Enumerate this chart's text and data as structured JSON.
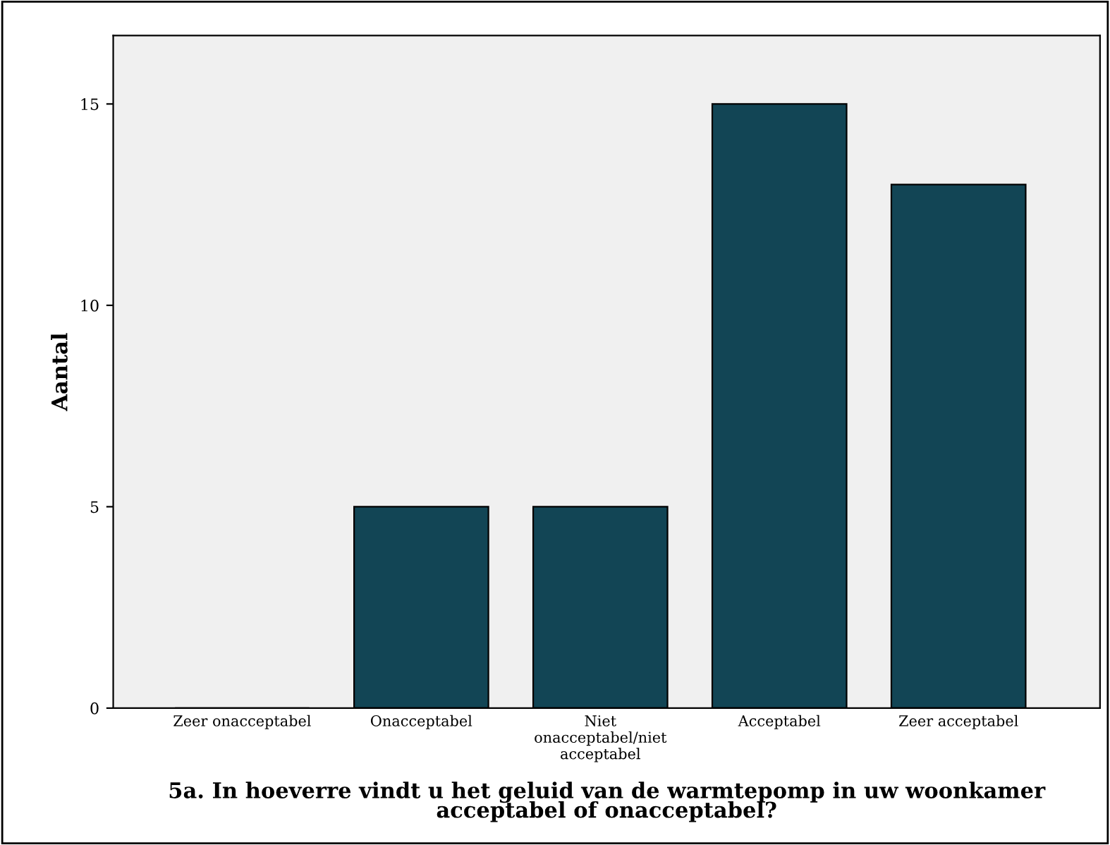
{
  "chart_data": {
    "type": "bar",
    "categories": [
      "Zeer onacceptabel",
      "Onacceptabel",
      "Niet\nonacceptabel/niet\nacceptabel",
      "Acceptabel",
      "Zeer acceptabel"
    ],
    "values": [
      0,
      5,
      5,
      15,
      13
    ],
    "color": "#124555",
    "ylabel": "Aantal",
    "xlabel": "5a. In hoeverre vindt u het geluid van de warmtepomp in uw woonkamer\nacceptabel of onacceptabel?",
    "ylim": [
      0,
      16.7
    ],
    "yticks": [
      0,
      5,
      10,
      15
    ],
    "grid": false,
    "legend": false
  }
}
